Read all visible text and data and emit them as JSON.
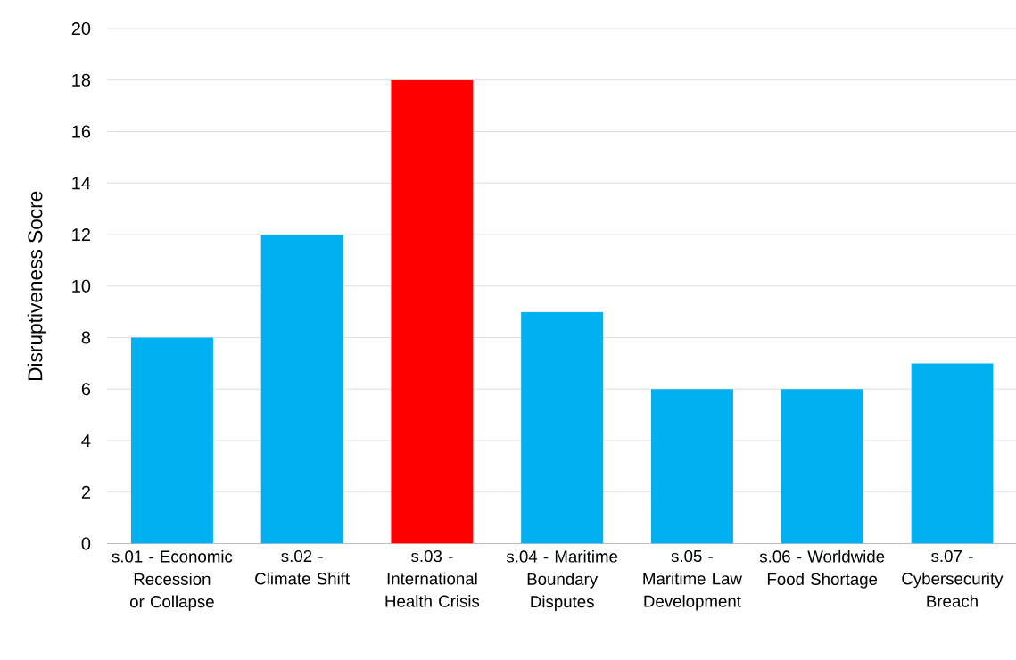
{
  "chart_data": {
    "type": "bar",
    "ylabel": "Disruptiveness Socre",
    "categories": [
      "s.01 - Economic Recession or Collapse",
      "s.02 - Climate Shift",
      "s.03 - International Health Crisis",
      "s.04 - Maritime Boundary Disputes",
      "s.05 - Maritime Law Development",
      "s.06 - Worldwide Food Shortage",
      "s.07 - Cybersecurity Breach"
    ],
    "values": [
      8,
      12,
      18,
      9,
      6,
      6,
      7
    ],
    "colors": [
      "#00b0f0",
      "#00b0f0",
      "#ff0000",
      "#00b0f0",
      "#00b0f0",
      "#00b0f0",
      "#00b0f0"
    ],
    "ylim": [
      0,
      20
    ],
    "yticks": [
      0,
      2,
      4,
      6,
      8,
      10,
      12,
      14,
      16,
      18,
      20
    ],
    "grid": "y"
  }
}
